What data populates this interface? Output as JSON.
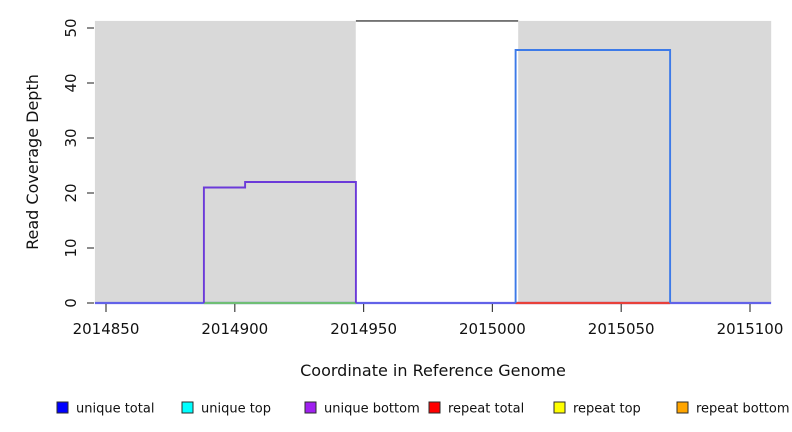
{
  "chart_data": {
    "type": "area",
    "title": "",
    "xlabel": "Coordinate in Reference Genome",
    "ylabel": "Read Coverage Depth",
    "xlim": [
      2014845.7,
      2015108.2
    ],
    "ylim": [
      0,
      51.3
    ],
    "x_ticks": [
      2014850,
      2014900,
      2014950,
      2015000,
      2015050,
      2015100
    ],
    "y_ticks": [
      0,
      10,
      20,
      30,
      40,
      50
    ],
    "grid": false,
    "covered_region_color": "#d9d9d9",
    "regions": [
      {
        "name": "covered-region-left",
        "x0": 2014845.7,
        "x1": 2014947,
        "fill": "#d9d9d9"
      },
      {
        "name": "uncovered-gap-region",
        "x0": 2014947,
        "x1": 2015010,
        "fill": "#ffffff",
        "top_border_color": "#5f5f5f"
      },
      {
        "name": "covered-region-right",
        "x0": 2015010,
        "x1": 2015108.2,
        "fill": "#d9d9d9"
      }
    ],
    "baseline_segments": [
      {
        "name": "zero-coverage-baseline",
        "x0": 2014845.7,
        "x1": 2015108.2,
        "y": 0,
        "color": "#6262e8"
      },
      {
        "name": "zero-baseline-under-unique-block",
        "x0": 2014888,
        "x1": 2014947,
        "y": 0,
        "color": "#6fbe74"
      },
      {
        "name": "repeat-total-zero-segment",
        "x0": 2015009,
        "x1": 2015069,
        "y": 0,
        "color": "#e8403a"
      }
    ],
    "series": [
      {
        "name": "unique-bottom-coverage-block",
        "color": "#6b3ad9",
        "points": [
          [
            2014888,
            0
          ],
          [
            2014888,
            21
          ],
          [
            2014904,
            21
          ],
          [
            2014904,
            22
          ],
          [
            2014947,
            22
          ],
          [
            2014947,
            0
          ]
        ]
      },
      {
        "name": "unique-top-coverage-block",
        "color": "#3d7ae8",
        "points": [
          [
            2015009,
            0
          ],
          [
            2015009,
            46
          ],
          [
            2015069,
            46
          ],
          [
            2015069,
            0
          ]
        ]
      }
    ],
    "legend": [
      {
        "label": "unique total",
        "color": "#0000ff"
      },
      {
        "label": "unique top",
        "color": "#00ffff"
      },
      {
        "label": "unique bottom",
        "color": "#a020f0"
      },
      {
        "label": "repeat total",
        "color": "#ff0000"
      },
      {
        "label": "repeat top",
        "color": "#ffff00"
      },
      {
        "label": "repeat bottom",
        "color": "#ffa500"
      }
    ],
    "legend_position": "bottom"
  }
}
